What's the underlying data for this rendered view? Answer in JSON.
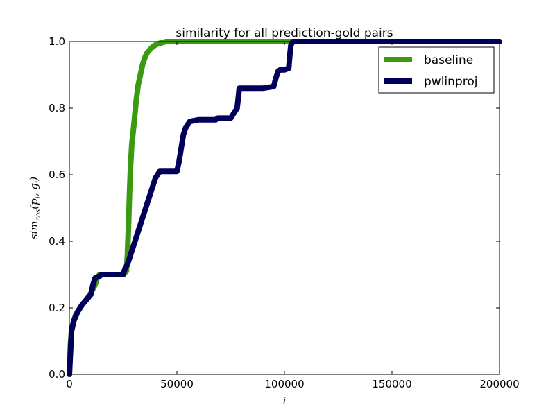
{
  "chart_data": {
    "type": "line",
    "title": "similarity for all prediction-gold pairs",
    "xlabel": "i",
    "ylabel": "sim_cos(p_i, g_i)",
    "xlim": [
      0,
      200000
    ],
    "ylim": [
      0,
      1.0
    ],
    "xticks": [
      "0",
      "50000",
      "100000",
      "150000",
      "200000"
    ],
    "yticks": [
      "0.0",
      "0.2",
      "0.4",
      "0.6",
      "0.8",
      "1.0"
    ],
    "legend_position": "top-right",
    "grid": false,
    "series": [
      {
        "name": "baseline",
        "color": "#3a9a10",
        "x": [
          0,
          500,
          1000,
          2000,
          3000,
          4000,
          5000,
          6000,
          8000,
          10000,
          12000,
          13000,
          14000,
          20000,
          25000,
          26500,
          27000,
          27500,
          28000,
          28500,
          29000,
          30000,
          31000,
          32000,
          33000,
          34000,
          35000,
          36000,
          38000,
          40000,
          42000,
          45000,
          50000,
          100000,
          200000
        ],
        "y": [
          0.0,
          0.09,
          0.13,
          0.16,
          0.18,
          0.19,
          0.2,
          0.21,
          0.225,
          0.245,
          0.27,
          0.29,
          0.3,
          0.3,
          0.3,
          0.31,
          0.36,
          0.45,
          0.55,
          0.63,
          0.69,
          0.75,
          0.82,
          0.87,
          0.9,
          0.93,
          0.95,
          0.965,
          0.98,
          0.99,
          0.995,
          1.0,
          1.0,
          1.0,
          1.0
        ]
      },
      {
        "name": "pwlinproj",
        "color": "#00005a",
        "x": [
          0,
          1000,
          2000,
          4000,
          6000,
          8000,
          10000,
          11000,
          12000,
          14000,
          15000,
          20000,
          25000,
          26000,
          27000,
          28000,
          30000,
          32000,
          34000,
          36000,
          38000,
          40000,
          41000,
          42000,
          44000,
          46000,
          50000,
          51000,
          52000,
          53000,
          54000,
          55000,
          56000,
          60000,
          65000,
          68000,
          69000,
          75000,
          76000,
          78000,
          78500,
          79000,
          80000,
          85000,
          90000,
          95000,
          96000,
          97000,
          98000,
          100000,
          102000,
          102500,
          103000,
          104000,
          110000,
          200000
        ],
        "y": [
          0.0,
          0.13,
          0.16,
          0.19,
          0.21,
          0.225,
          0.24,
          0.27,
          0.29,
          0.295,
          0.3,
          0.3,
          0.3,
          0.32,
          0.33,
          0.35,
          0.39,
          0.43,
          0.47,
          0.51,
          0.55,
          0.59,
          0.6,
          0.61,
          0.61,
          0.61,
          0.61,
          0.64,
          0.68,
          0.72,
          0.74,
          0.75,
          0.76,
          0.765,
          0.765,
          0.765,
          0.77,
          0.77,
          0.78,
          0.8,
          0.83,
          0.86,
          0.86,
          0.86,
          0.86,
          0.865,
          0.89,
          0.91,
          0.915,
          0.915,
          0.92,
          0.96,
          0.99,
          1.0,
          1.0,
          1.0
        ]
      }
    ]
  }
}
